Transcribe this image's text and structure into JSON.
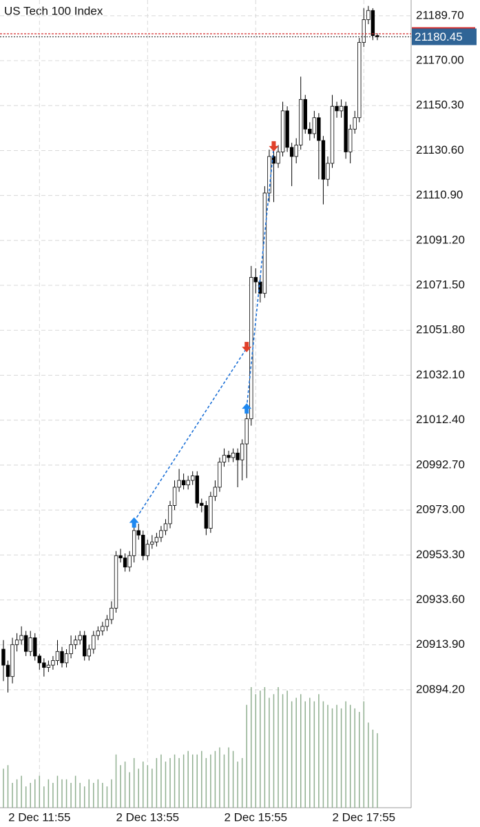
{
  "chart_data": {
    "type": "candlestick",
    "title": "US Tech 100 Index",
    "open": [
      20912,
      20905,
      20900,
      20914,
      20916,
      20918,
      20911,
      20917,
      20909,
      20906,
      20904,
      20905,
      20907,
      20911,
      20906,
      20910,
      20914,
      20916,
      20918,
      20909,
      20912,
      20918,
      20920,
      20922,
      20925,
      20930,
      20953,
      20952,
      20948,
      20953,
      20964,
      20962,
      20953,
      20958,
      20959,
      20961,
      20964,
      20967,
      20975,
      20983,
      20986,
      20984,
      20986,
      20988,
      20976,
      20975,
      20965,
      20979,
      20983,
      20994,
      20997,
      20996,
      20998,
      20995,
      21002,
      21013,
      21075,
      21073,
      21068,
      21112,
      21128,
      21125,
      21130,
      21148,
      21132,
      21128,
      21133,
      21153,
      21140,
      21138,
      21145,
      21135,
      21118,
      21125,
      21150,
      21148,
      21150,
      21130,
      21140,
      21145,
      21178,
      21188,
      21192,
      21181
    ],
    "high": [
      20916,
      20907,
      20917,
      20919,
      20922,
      20920,
      20920,
      20919,
      20910,
      20908,
      20907,
      20909,
      20916,
      20913,
      20912,
      20918,
      20918,
      20920,
      20920,
      20914,
      20920,
      20922,
      20924,
      20927,
      20933,
      20955,
      20956,
      20954,
      20955,
      20966,
      20967,
      20964,
      20960,
      20962,
      20963,
      20966,
      20969,
      20977,
      20986,
      20991,
      20989,
      20988,
      20990,
      20990,
      20978,
      20977,
      20981,
      20986,
      20996,
      21000,
      20999,
      21000,
      21000,
      21004,
      21016,
      21080,
      21079,
      21076,
      21115,
      21131,
      21132,
      21133,
      21152,
      21150,
      21134,
      21136,
      21163,
      21155,
      21143,
      21148,
      21147,
      21137,
      21128,
      21155,
      21152,
      21153,
      21152,
      21142,
      21148,
      21180,
      21193,
      21194,
      21193,
      21182
    ],
    "low": [
      20898,
      20893,
      20897,
      20911,
      20914,
      20909,
      20909,
      20907,
      20903,
      20900,
      20902,
      20903,
      20905,
      20904,
      20904,
      20908,
      20912,
      20914,
      20907,
      20907,
      20910,
      20916,
      20918,
      20920,
      20923,
      20928,
      20950,
      20946,
      20946,
      20950,
      20960,
      20951,
      20951,
      20956,
      20957,
      20959,
      20962,
      20965,
      20973,
      20981,
      20982,
      20982,
      20984,
      20974,
      20972,
      20962,
      20963,
      20977,
      20981,
      20992,
      20994,
      20994,
      20983,
      20986,
      20987,
      21010,
      21068,
      21064,
      21066,
      21108,
      21108,
      21123,
      21128,
      21130,
      21115,
      21125,
      21131,
      21138,
      21135,
      21136,
      21118,
      21107,
      21115,
      21123,
      21145,
      21145,
      21127,
      21125,
      21138,
      21143,
      21176,
      21186,
      21179,
      21179
    ],
    "close": [
      20905,
      20900,
      20914,
      20916,
      20918,
      20911,
      20917,
      20909,
      20906,
      20904,
      20905,
      20907,
      20911,
      20906,
      20910,
      20914,
      20916,
      20918,
      20909,
      20912,
      20918,
      20920,
      20922,
      20925,
      20930,
      20953,
      20952,
      20948,
      20953,
      20964,
      20962,
      20953,
      20958,
      20959,
      20961,
      20964,
      20967,
      20975,
      20983,
      20986,
      20984,
      20986,
      20988,
      20976,
      20975,
      20965,
      20979,
      20983,
      20994,
      20997,
      20996,
      20998,
      20995,
      21002,
      21013,
      21075,
      21073,
      21068,
      21112,
      21128,
      21125,
      21130,
      21148,
      21132,
      21128,
      21133,
      21153,
      21140,
      21138,
      21145,
      21135,
      21118,
      21125,
      21150,
      21148,
      21150,
      21130,
      21140,
      21145,
      21178,
      21188,
      21192,
      21181,
      21180.45
    ],
    "volume": [
      55,
      60,
      35,
      40,
      45,
      30,
      35,
      40,
      45,
      30,
      40,
      35,
      45,
      40,
      40,
      35,
      45,
      35,
      30,
      40,
      35,
      40,
      35,
      30,
      40,
      75,
      60,
      65,
      50,
      70,
      55,
      65,
      60,
      55,
      70,
      75,
      65,
      70,
      75,
      70,
      75,
      80,
      75,
      75,
      80,
      70,
      75,
      80,
      85,
      75,
      85,
      80,
      65,
      70,
      145,
      170,
      160,
      165,
      170,
      155,
      160,
      170,
      160,
      165,
      150,
      155,
      160,
      150,
      155,
      150,
      160,
      150,
      145,
      140,
      145,
      140,
      150,
      145,
      140,
      135,
      150,
      120,
      110,
      105
    ],
    "up_color": "#ffffff",
    "down_color": "#000000",
    "volume_color": "#8fae8f",
    "ylim": [
      20842.5,
      21196.6
    ],
    "yticks": [
      {
        "value": 21189.7,
        "label": "21189.70"
      },
      {
        "value": 21170,
        "label": "21170.00"
      },
      {
        "value": 21150.3,
        "label": "21150.30"
      },
      {
        "value": 21130.6,
        "label": "21130.60"
      },
      {
        "value": 21110.9,
        "label": "21110.90"
      },
      {
        "value": 21091.2,
        "label": "21091.20"
      },
      {
        "value": 21071.5,
        "label": "21071.50"
      },
      {
        "value": 21051.8,
        "label": "21051.80"
      },
      {
        "value": 21032.1,
        "label": "21032.10"
      },
      {
        "value": 21012.4,
        "label": "21012.40"
      },
      {
        "value": 20992.7,
        "label": "20992.70"
      },
      {
        "value": 20973,
        "label": "20973.00"
      },
      {
        "value": 20953.3,
        "label": "20953.30"
      },
      {
        "value": 20933.6,
        "label": "20933.60"
      },
      {
        "value": 20913.9,
        "label": "20913.90"
      },
      {
        "value": 20894.2,
        "label": "20894.20"
      }
    ],
    "xlim": [
      -0.76,
      90.5
    ],
    "xticks": [
      {
        "value": 8,
        "label": "2 Dec 11:55"
      },
      {
        "value": 32,
        "label": "2 Dec 13:55"
      },
      {
        "value": 56,
        "label": "2 Dec 15:55"
      },
      {
        "value": 80,
        "label": "2 Dec 17:55"
      }
    ],
    "grid": true,
    "bid": 21180.45,
    "bid_color": "#2f6496",
    "ask": 21181.8,
    "ask_color": "#d42a2a",
    "trade_color": "#1a6fd6",
    "entry_color": "#1e88f0",
    "exit_color": "#e0402a",
    "trades": [
      {
        "open_index": 29,
        "open_price": 20968,
        "close_index": 54,
        "close_price": 21044
      },
      {
        "open_index": 54,
        "open_price": 21018,
        "close_index": 60,
        "close_price": 21132
      }
    ]
  }
}
